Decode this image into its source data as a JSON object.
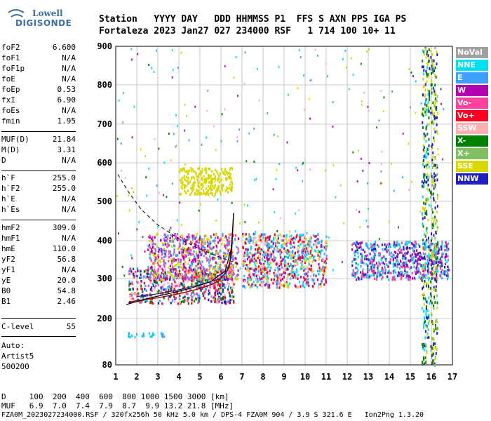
{
  "logo": {
    "line1": "Lowell",
    "line2": "DIGISONDE"
  },
  "header": {
    "line1": "Station   YYYY DAY   DDD HHMMSS P1  FFS S AXN PPS IGA PS",
    "line2": "Fortaleza 2023 Jan27 027 234000 RSF   1 714 100 10+ 11"
  },
  "params": [
    {
      "k": "foF2",
      "v": "6.600"
    },
    {
      "k": "foF1",
      "v": "N/A"
    },
    {
      "k": "foF1p",
      "v": "N/A"
    },
    {
      "k": "foE",
      "v": "N/A"
    },
    {
      "k": "foEp",
      "v": "0.53"
    },
    {
      "k": "fxI",
      "v": "6.90"
    },
    {
      "k": "foEs",
      "v": "N/A"
    },
    {
      "k": "fmin",
      "v": "1.95"
    },
    {
      "k": "MUF(D)",
      "v": "21.84"
    },
    {
      "k": "M(D)",
      "v": "3.31"
    },
    {
      "k": "D",
      "v": "N/A"
    },
    {
      "k": "h`F",
      "v": "255.0"
    },
    {
      "k": "h`F2",
      "v": "255.0"
    },
    {
      "k": "h`E",
      "v": "N/A"
    },
    {
      "k": "h`Es",
      "v": "N/A"
    },
    {
      "k": "hmF2",
      "v": "309.0"
    },
    {
      "k": "hmF1",
      "v": "N/A"
    },
    {
      "k": "hmE",
      "v": "110.0"
    },
    {
      "k": "yF2",
      "v": "56.8"
    },
    {
      "k": "yF1",
      "v": "N/A"
    },
    {
      "k": "yE",
      "v": "20.0"
    },
    {
      "k": "B0",
      "v": "54.8"
    },
    {
      "k": "B1",
      "v": "2.46"
    },
    {
      "k": "C-level",
      "v": "55"
    }
  ],
  "auto": {
    "label": "Auto:",
    "name": "Artist5",
    "ver": "500200"
  },
  "footer": {
    "d_row": "D     100  200  400  600  800 1000 1500 3000 [km]",
    "muf_row": "MUF   6.9  7.0  7.4  7.9  8.7  9.9 13.2 21.8 [MHz]",
    "file_row": "FZA0M_2023027234000.RSF / 320fx256h 50 kHz 5.0 km / DPS-4 FZA0M 904 / 3.9 S 321.6 E   Ion2Png 1.3.20"
  },
  "legend": [
    {
      "label": "NoVal",
      "color": "#a0a0a0"
    },
    {
      "label": "NNE",
      "color": "#00e0f0"
    },
    {
      "label": "E",
      "color": "#40a0ff"
    },
    {
      "label": "W",
      "color": "#b000b0"
    },
    {
      "label": "Vo-",
      "color": "#ff40a0"
    },
    {
      "label": "Vo+",
      "color": "#ff0020"
    },
    {
      "label": "SSW",
      "color": "#ffb0b0"
    },
    {
      "label": "X-",
      "color": "#008000"
    },
    {
      "label": "X+",
      "color": "#80c060"
    },
    {
      "label": "SSE",
      "color": "#d8d800"
    },
    {
      "label": "NNW",
      "color": "#2020c0"
    }
  ],
  "chart_data": {
    "type": "scatter",
    "xlabel": "",
    "ylabel": "",
    "xlim": [
      1,
      17
    ],
    "ylim": [
      80,
      900
    ],
    "xticks": [
      1,
      2,
      3,
      4,
      5,
      6,
      7,
      8,
      9,
      10,
      11,
      12,
      13,
      14,
      15,
      16,
      17
    ],
    "yticks": [
      80,
      200,
      300,
      400,
      500,
      600,
      700,
      800,
      900
    ],
    "grid": true,
    "trace_profile": [
      [
        1.6,
        240
      ],
      [
        2,
        245
      ],
      [
        3,
        252
      ],
      [
        4,
        262
      ],
      [
        5,
        275
      ],
      [
        5.8,
        290
      ],
      [
        6.3,
        320
      ],
      [
        6.5,
        360
      ],
      [
        6.6,
        470
      ]
    ],
    "trace_vertical": [
      [
        2,
        255
      ],
      [
        3,
        262
      ],
      [
        4,
        272
      ],
      [
        5,
        285
      ],
      [
        6,
        300
      ],
      [
        6.4,
        330
      ],
      [
        6.55,
        420
      ]
    ],
    "model_profile": [
      [
        1.5,
        235
      ],
      [
        2.5,
        250
      ],
      [
        3.5,
        262
      ],
      [
        4.5,
        275
      ],
      [
        5.5,
        292
      ],
      [
        6.2,
        320
      ],
      [
        6.5,
        380
      ],
      [
        6.6,
        470
      ]
    ],
    "dashed_curve": [
      [
        1.1,
        570
      ],
      [
        1.6,
        525
      ],
      [
        2.2,
        480
      ],
      [
        3,
        440
      ],
      [
        4,
        405
      ],
      [
        5,
        378
      ],
      [
        6,
        355
      ],
      [
        6.8,
        340
      ]
    ],
    "echo_regions": [
      {
        "name": "F-trace-o",
        "x": [
          1.6,
          6.6
        ],
        "y": [
          240,
          330
        ],
        "colors": [
          "#ff0020",
          "#40a0ff",
          "#008000",
          "#ffb0b0",
          "#2020c0",
          "#ff40a0"
        ]
      },
      {
        "name": "F-trace-spread",
        "x": [
          2.5,
          6.8
        ],
        "y": [
          300,
          420
        ],
        "colors": [
          "#b000b0",
          "#ff40a0",
          "#40a0ff",
          "#d8d800"
        ]
      },
      {
        "name": "second-hop",
        "x": [
          4,
          6.5
        ],
        "y": [
          520,
          590
        ],
        "colors": [
          "#d8d800"
        ]
      },
      {
        "name": "spread-F-mid",
        "x": [
          7,
          11
        ],
        "y": [
          280,
          420
        ],
        "colors": [
          "#40a0ff",
          "#d8d800",
          "#ff0020",
          "#b000b0",
          "#00e0f0",
          "#ffb0b0"
        ]
      },
      {
        "name": "spread-F-high",
        "x": [
          12.2,
          16.8
        ],
        "y": [
          300,
          400
        ],
        "colors": [
          "#b000b0",
          "#40a0ff",
          "#2020c0",
          "#00e0f0",
          "#ff40a0"
        ]
      },
      {
        "name": "lower-blue-band",
        "x": [
          1.5,
          3.3
        ],
        "y": [
          155,
          165
        ],
        "colors": [
          "#40a0ff",
          "#00e0f0"
        ]
      }
    ],
    "vertical_strips": [
      {
        "x": 15.7,
        "y": [
          80,
          900
        ],
        "colors": [
          "#008000",
          "#2020c0",
          "#d8d800",
          "#00e0f0"
        ]
      },
      {
        "x": 16.1,
        "y": [
          80,
          900
        ],
        "colors": [
          "#008000",
          "#2020c0",
          "#80c060",
          "#d8d800"
        ]
      }
    ]
  }
}
